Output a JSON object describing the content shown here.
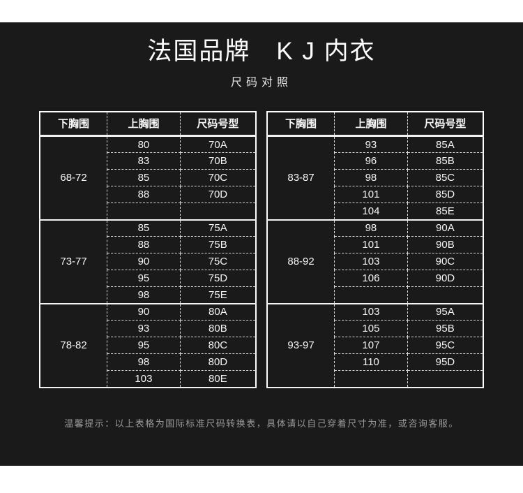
{
  "colors": {
    "panel_background": "#1a1a1a",
    "page_background": "#ffffff",
    "table_border": "#ffffff",
    "table_text": "#f5f5f5",
    "note_text": "#999999"
  },
  "chart_data": {
    "type": "table",
    "title": "法国品牌　K J 内衣",
    "subtitle": "尺码对照",
    "columns": [
      "下胸围",
      "上胸围",
      "尺码号型"
    ],
    "tables": [
      {
        "name": "left-size-table",
        "groups": [
          {
            "underbust": "68-72",
            "rows": [
              [
                "80",
                "70A"
              ],
              [
                "83",
                "70B"
              ],
              [
                "85",
                "70C"
              ],
              [
                "88",
                "70D"
              ],
              [
                "",
                ""
              ]
            ]
          },
          {
            "underbust": "73-77",
            "rows": [
              [
                "85",
                "75A"
              ],
              [
                "88",
                "75B"
              ],
              [
                "90",
                "75C"
              ],
              [
                "95",
                "75D"
              ],
              [
                "98",
                "75E"
              ]
            ]
          },
          {
            "underbust": "78-82",
            "rows": [
              [
                "90",
                "80A"
              ],
              [
                "93",
                "80B"
              ],
              [
                "95",
                "80C"
              ],
              [
                "98",
                "80D"
              ],
              [
                "103",
                "80E"
              ]
            ]
          }
        ]
      },
      {
        "name": "right-size-table",
        "groups": [
          {
            "underbust": "83-87",
            "rows": [
              [
                "93",
                "85A"
              ],
              [
                "96",
                "85B"
              ],
              [
                "98",
                "85C"
              ],
              [
                "101",
                "85D"
              ],
              [
                "104",
                "85E"
              ]
            ]
          },
          {
            "underbust": "88-92",
            "rows": [
              [
                "98",
                "90A"
              ],
              [
                "101",
                "90B"
              ],
              [
                "103",
                "90C"
              ],
              [
                "106",
                "90D"
              ],
              [
                "",
                ""
              ]
            ]
          },
          {
            "underbust": "93-97",
            "rows": [
              [
                "103",
                "95A"
              ],
              [
                "105",
                "95B"
              ],
              [
                "107",
                "95C"
              ],
              [
                "110",
                "95D"
              ],
              [
                "",
                ""
              ]
            ]
          }
        ]
      }
    ],
    "note": "温馨提示：以上表格为国际标准尺码转换表，具体请以自己穿着尺寸为准，或咨询客服。"
  }
}
